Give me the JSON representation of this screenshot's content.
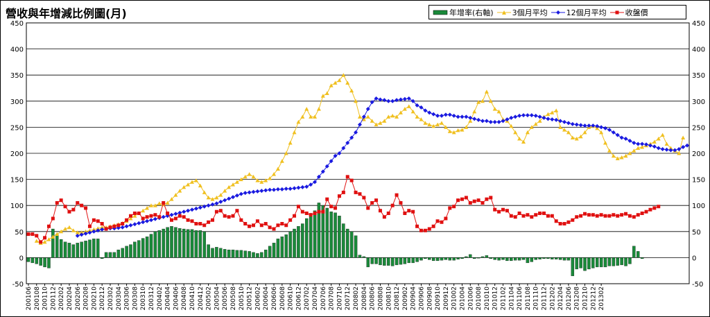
{
  "chart_data": {
    "type": "bar+line",
    "title": "營收與年增減比例圖(月)",
    "legend_placement": "top-right",
    "y_left": {
      "range": [
        -50,
        450
      ],
      "ticks": [
        -50,
        0,
        50,
        100,
        150,
        200,
        250,
        300,
        350,
        400,
        450
      ]
    },
    "y_right": {
      "range": [
        -50,
        450
      ],
      "ticks": [
        -50,
        0,
        50,
        100,
        150,
        200,
        250,
        300,
        350,
        400,
        450
      ]
    },
    "x_labels": [
      "200106",
      "200108",
      "200110",
      "200112",
      "200202",
      "200204",
      "200206",
      "200208",
      "200210",
      "200212",
      "200302",
      "200304",
      "200306",
      "200308",
      "200310",
      "200312",
      "200402",
      "200404",
      "200406",
      "200408",
      "200410",
      "200412",
      "200502",
      "200504",
      "200506",
      "200508",
      "200510",
      "200512",
      "200602",
      "200604",
      "200606",
      "200608",
      "200610",
      "200612",
      "200702",
      "200704",
      "200706",
      "200708",
      "200710",
      "200712",
      "200802",
      "200804",
      "200806",
      "200808",
      "200810",
      "200812",
      "200902",
      "200904",
      "200906",
      "200908",
      "200910",
      "200912",
      "201002",
      "201004",
      "201006",
      "201008",
      "201010",
      "201012",
      "201102",
      "201104",
      "201106",
      "201108",
      "201110",
      "201112",
      "201202",
      "201204",
      "201206",
      "201208",
      "201210",
      "201212",
      "201302"
    ],
    "series": [
      {
        "name": "年增率(右軸)",
        "type": "bar",
        "color": "#1a8a3a",
        "values": [
          -8,
          -10,
          -12,
          -15,
          -18,
          -20,
          55,
          45,
          35,
          30,
          28,
          25,
          28,
          30,
          32,
          34,
          36,
          36,
          -2,
          10,
          10,
          10,
          15,
          18,
          22,
          25,
          30,
          33,
          37,
          40,
          45,
          50,
          52,
          55,
          58,
          60,
          58,
          56,
          55,
          54,
          54,
          52,
          52,
          50,
          25,
          18,
          20,
          18,
          16,
          15,
          15,
          14,
          14,
          13,
          12,
          10,
          8,
          10,
          15,
          22,
          28,
          36,
          40,
          44,
          50,
          55,
          60,
          65,
          75,
          85,
          90,
          105,
          100,
          95,
          88,
          86,
          80,
          65,
          55,
          50,
          42,
          5,
          2,
          -18,
          -12,
          -12,
          -14,
          -15,
          -15,
          -16,
          -14,
          -13,
          -12,
          -10,
          -10,
          -8,
          -5,
          -2,
          -4,
          -6,
          -6,
          -5,
          -4,
          -5,
          -5,
          -3,
          -2,
          2,
          6,
          -2,
          -1,
          2,
          4,
          -2,
          -4,
          -5,
          -4,
          -6,
          -6,
          -5,
          -5,
          -4,
          -10,
          -8,
          -4,
          -3,
          -2,
          -2,
          -3,
          -3,
          -4,
          -5,
          -5,
          -35,
          -22,
          -20,
          -25,
          -22,
          -20,
          -18,
          -18,
          -18,
          -16,
          -16,
          -15,
          -14,
          -16,
          -12,
          22,
          12,
          -2
        ]
      },
      {
        "name": "3個月平均",
        "type": "line",
        "color": "#f0c020",
        "values": [
          null,
          null,
          32,
          28,
          30,
          35,
          40,
          45,
          50,
          55,
          58,
          52,
          48,
          48,
          50,
          52,
          54,
          56,
          58,
          58,
          60,
          62,
          64,
          66,
          70,
          75,
          80,
          85,
          90,
          95,
          100,
          100,
          104,
          102,
          105,
          112,
          120,
          128,
          135,
          140,
          145,
          148,
          138,
          125,
          115,
          112,
          115,
          120,
          128,
          135,
          140,
          145,
          150,
          155,
          160,
          155,
          148,
          145,
          148,
          152,
          160,
          170,
          185,
          200,
          220,
          240,
          260,
          270,
          285,
          270,
          270,
          285,
          310,
          315,
          330,
          335,
          340,
          350,
          335,
          320,
          300,
          270,
          265,
          270,
          262,
          255,
          258,
          262,
          270,
          272,
          270,
          278,
          285,
          290,
          280,
          270,
          265,
          258,
          255,
          252,
          255,
          258,
          250,
          242,
          240,
          244,
          245,
          250,
          262,
          280,
          298,
          300,
          318,
          300,
          285,
          280,
          265,
          262,
          252,
          240,
          228,
          222,
          240,
          250,
          256,
          262,
          270,
          275,
          278,
          282,
          250,
          245,
          240,
          230,
          228,
          232,
          240,
          250,
          252,
          248,
          240,
          220,
          205,
          195,
          190,
          192,
          195,
          200,
          205,
          210,
          212,
          215,
          218,
          222,
          228,
          235,
          218,
          210,
          205,
          200,
          230
        ]
      },
      {
        "name": "12個月平均",
        "type": "line",
        "color": "#1a1ae0",
        "values": [
          null,
          null,
          null,
          null,
          null,
          null,
          null,
          null,
          null,
          null,
          null,
          null,
          42,
          44,
          46,
          48,
          50,
          52,
          54,
          55,
          56,
          56,
          57,
          58,
          60,
          62,
          64,
          66,
          68,
          70,
          72,
          74,
          76,
          78,
          80,
          82,
          84,
          86,
          88,
          90,
          92,
          94,
          96,
          98,
          100,
          102,
          104,
          107,
          110,
          113,
          116,
          119,
          122,
          124,
          125,
          126,
          127,
          128,
          129,
          130,
          130,
          131,
          131,
          132,
          132,
          133,
          134,
          135,
          136,
          140,
          145,
          155,
          165,
          175,
          185,
          195,
          200,
          210,
          220,
          230,
          240,
          255,
          270,
          285,
          298,
          305,
          303,
          302,
          300,
          300,
          302,
          303,
          304,
          305,
          300,
          292,
          288,
          282,
          278,
          275,
          272,
          272,
          274,
          274,
          272,
          270,
          270,
          270,
          268,
          266,
          264,
          262,
          262,
          260,
          260,
          260,
          262,
          265,
          268,
          270,
          272,
          273,
          273,
          273,
          272,
          270,
          268,
          266,
          265,
          264,
          262,
          260,
          258,
          256,
          255,
          254,
          253,
          253,
          253,
          252,
          250,
          248,
          245,
          240,
          235,
          230,
          228,
          224,
          220,
          218,
          218,
          217,
          215,
          213,
          210,
          208,
          207,
          206,
          206,
          208,
          212,
          215
        ]
      },
      {
        "name": "收盤價",
        "type": "line",
        "color": "#e01010",
        "values": [
          45,
          45,
          42,
          30,
          38,
          60,
          75,
          105,
          110,
          98,
          88,
          92,
          105,
          100,
          95,
          60,
          72,
          70,
          65,
          55,
          58,
          60,
          62,
          65,
          72,
          80,
          85,
          85,
          75,
          78,
          80,
          82,
          78,
          105,
          85,
          72,
          75,
          80,
          78,
          72,
          70,
          65,
          65,
          62,
          68,
          72,
          88,
          90,
          80,
          78,
          80,
          90,
          72,
          65,
          60,
          62,
          70,
          62,
          65,
          58,
          55,
          62,
          65,
          62,
          72,
          80,
          98,
          88,
          85,
          82,
          85,
          88,
          88,
          112,
          98,
          95,
          118,
          125,
          155,
          148,
          125,
          122,
          115,
          95,
          105,
          110,
          90,
          78,
          85,
          100,
          120,
          105,
          85,
          90,
          88,
          60,
          52,
          52,
          55,
          60,
          70,
          68,
          75,
          95,
          98,
          110,
          112,
          115,
          105,
          108,
          110,
          105,
          112,
          115,
          92,
          88,
          92,
          90,
          80,
          78,
          85,
          80,
          82,
          78,
          82,
          85,
          85,
          80,
          80,
          70,
          65,
          65,
          68,
          72,
          78,
          80,
          84,
          82,
          82,
          80,
          82,
          80,
          80,
          82,
          80,
          82,
          84,
          80,
          78,
          82,
          85,
          88,
          92,
          95,
          98
        ]
      }
    ]
  }
}
